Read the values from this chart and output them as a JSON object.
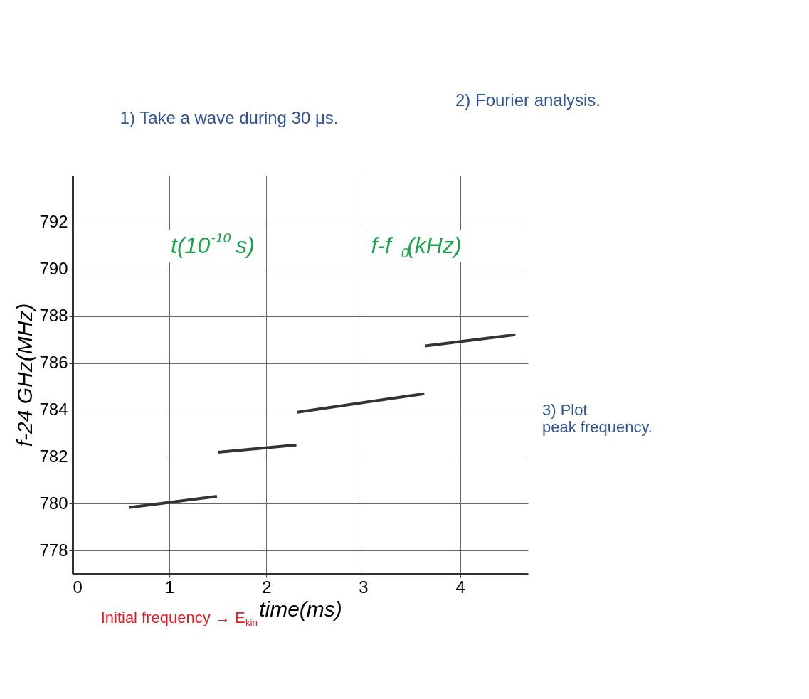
{
  "chart_data": {
    "type": "line",
    "xlabel": "time(ms)",
    "ylabel": "f-24 GHz(MHz)",
    "xlim": [
      0,
      4.7
    ],
    "xticks": [
      0,
      1,
      2,
      3,
      4
    ],
    "ylim": [
      777,
      794
    ],
    "yticks": [
      778,
      780,
      782,
      784,
      786,
      788,
      790,
      792
    ],
    "grid": true,
    "legend": false,
    "marker": "none",
    "line_style": "solid",
    "series": [
      {
        "color": "#333333",
        "x": [
          0.58,
          1.49
        ],
        "values": [
          779.83,
          780.31
        ]
      },
      {
        "color": "#333333",
        "x": [
          1.5,
          2.31
        ],
        "values": [
          782.19,
          782.5
        ]
      },
      {
        "color": "#333333",
        "x": [
          2.32,
          3.63
        ],
        "values": [
          783.9,
          784.69
        ]
      },
      {
        "color": "#333333",
        "x": [
          3.64,
          4.57
        ],
        "values": [
          786.73,
          787.21
        ]
      }
    ],
    "annotations": [
      "1) Take a wave during 30 μs.",
      "2) Fourier analysis.",
      "3) Plot peak frequency.",
      "t(10$^{-10}$ s)",
      "f-f$_{0}$(kHz)",
      "Initial frequency → E$_{kin}$"
    ]
  }
}
